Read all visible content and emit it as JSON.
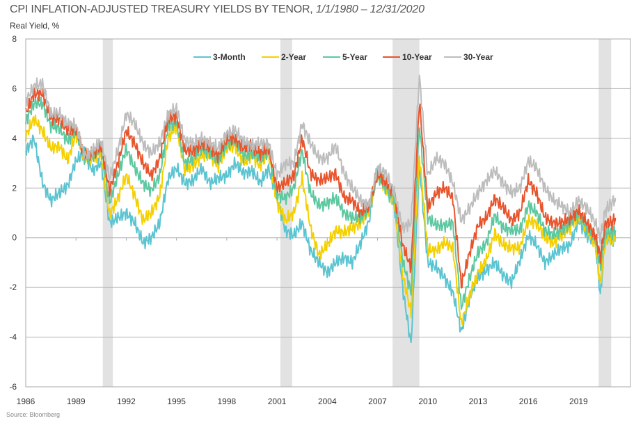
{
  "chart_data": {
    "type": "line",
    "title": "CPI INFLATION-ADJUSTED TREASURY YIELDS BY TENOR,",
    "title_dates": "1/1/1980 – 12/31/2020",
    "ylabel": "Real Yield, %",
    "xlabel": "",
    "source": "Source: Bloomberg",
    "ylim": [
      -6,
      8
    ],
    "xlim": [
      1986,
      2022.1
    ],
    "yticks": [
      -6,
      -4,
      -2,
      0,
      2,
      4,
      6,
      8
    ],
    "xticks": [
      1986,
      1989,
      1992,
      1995,
      1998,
      2001,
      2004,
      2007,
      2010,
      2013,
      2016,
      2019
    ],
    "grid": true,
    "legend_position": "top-center",
    "recessions": [
      [
        1990.6,
        1991.2
      ],
      [
        2001.2,
        2001.9
      ],
      [
        2007.9,
        2009.5
      ],
      [
        2020.2,
        2020.95
      ]
    ],
    "x": [
      1986,
      1986.5,
      1987,
      1987.5,
      1988,
      1988.5,
      1989,
      1989.5,
      1990,
      1990.5,
      1991,
      1991.5,
      1992,
      1992.5,
      1993,
      1993.5,
      1994,
      1994.5,
      1995,
      1995.5,
      1996,
      1996.5,
      1997,
      1997.5,
      1998,
      1998.5,
      1999,
      1999.5,
      2000,
      2000.5,
      2001,
      2001.5,
      2002,
      2002.5,
      2003,
      2003.5,
      2004,
      2004.5,
      2005,
      2005.5,
      2006,
      2006.5,
      2007,
      2007.5,
      2008,
      2008.5,
      2009,
      2009.5,
      2010,
      2010.5,
      2011,
      2011.5,
      2012,
      2012.5,
      2013,
      2013.5,
      2014,
      2014.5,
      2015,
      2015.5,
      2016,
      2016.5,
      2017,
      2017.5,
      2018,
      2018.5,
      2019,
      2019.5,
      2020,
      2020.3,
      2020.6,
      2021,
      2021.2
    ],
    "series": [
      {
        "name": "3-Month",
        "color": "#5bc4d1",
        "values": [
          3.5,
          4.0,
          2.2,
          1.5,
          1.8,
          2.1,
          3.1,
          3.4,
          2.7,
          3.0,
          0.6,
          0.8,
          1.0,
          0.6,
          -0.2,
          0.0,
          0.6,
          2.4,
          2.8,
          2.2,
          2.3,
          2.8,
          2.2,
          2.4,
          2.5,
          3.0,
          2.6,
          2.7,
          2.2,
          2.8,
          1.6,
          0.3,
          0.1,
          0.6,
          -0.5,
          -1.0,
          -1.4,
          -1.0,
          -0.8,
          -1.0,
          -0.2,
          0.7,
          2.9,
          2.0,
          1.3,
          -2.0,
          -4.3,
          2.9,
          -1.0,
          -1.2,
          -1.6,
          -2.2,
          -3.8,
          -2.4,
          -1.6,
          -1.3,
          -1.0,
          -1.5,
          -1.8,
          -0.9,
          0.1,
          -0.3,
          -1.0,
          -0.7,
          -0.4,
          -0.3,
          0.7,
          0.1,
          -0.2,
          -2.3,
          0.0,
          -0.1,
          0.0
        ]
      },
      {
        "name": "2-Year",
        "color": "#f5d000",
        "values": [
          4.1,
          4.8,
          4.3,
          3.6,
          3.7,
          3.1,
          4.2,
          3.2,
          3.2,
          3.4,
          0.9,
          1.6,
          2.5,
          1.7,
          0.7,
          1.0,
          1.7,
          4.0,
          4.5,
          2.7,
          2.9,
          3.3,
          3.3,
          2.9,
          3.6,
          3.7,
          3.0,
          3.3,
          2.9,
          3.4,
          1.4,
          0.7,
          1.0,
          2.4,
          0.4,
          -0.7,
          -0.3,
          0.3,
          0.2,
          0.4,
          0.6,
          1.1,
          2.6,
          1.9,
          1.5,
          -1.5,
          -3.0,
          3.3,
          -0.5,
          -0.5,
          -0.2,
          -0.4,
          -3.5,
          -2.3,
          -1.4,
          -0.9,
          0.2,
          -0.3,
          -0.4,
          -0.4,
          0.7,
          0.6,
          0.0,
          -0.2,
          0.1,
          0.4,
          0.9,
          0.3,
          -0.2,
          -1.9,
          0.0,
          0.0,
          0.0
        ]
      },
      {
        "name": "5-Year",
        "color": "#5cc8a0",
        "values": [
          4.7,
          5.4,
          5.4,
          4.5,
          4.4,
          3.9,
          4.3,
          3.2,
          3.3,
          3.6,
          1.4,
          2.5,
          3.6,
          2.8,
          2.2,
          1.9,
          2.5,
          4.5,
          4.6,
          3.0,
          3.2,
          3.6,
          3.4,
          3.1,
          3.8,
          3.9,
          3.3,
          3.4,
          3.2,
          3.5,
          1.7,
          1.6,
          2.0,
          3.5,
          1.8,
          1.3,
          1.4,
          1.6,
          1.0,
          0.8,
          0.8,
          1.2,
          2.5,
          2.0,
          1.6,
          -0.9,
          -2.2,
          4.5,
          0.8,
          0.5,
          0.5,
          0.6,
          -2.8,
          -1.6,
          -0.6,
          -0.2,
          0.9,
          0.4,
          0.3,
          0.3,
          1.3,
          1.0,
          0.3,
          0.1,
          0.3,
          0.6,
          1.0,
          0.4,
          0.0,
          -1.2,
          0.2,
          0.2,
          0.3
        ]
      },
      {
        "name": "10-Year",
        "color": "#e8542c",
        "values": [
          5.0,
          5.8,
          5.8,
          4.8,
          4.8,
          4.3,
          4.4,
          3.3,
          3.4,
          3.7,
          1.9,
          3.0,
          4.3,
          3.8,
          3.0,
          2.5,
          3.2,
          4.8,
          4.9,
          3.5,
          3.5,
          3.8,
          3.6,
          3.3,
          4.0,
          4.0,
          3.6,
          3.7,
          3.4,
          3.6,
          2.0,
          2.2,
          2.5,
          4.0,
          2.6,
          2.3,
          2.4,
          2.6,
          1.6,
          1.5,
          1.0,
          1.3,
          2.6,
          2.2,
          1.8,
          -0.3,
          -1.2,
          5.5,
          1.2,
          1.8,
          2.0,
          1.6,
          -1.9,
          -0.6,
          0.5,
          0.8,
          1.6,
          1.2,
          0.7,
          1.0,
          2.3,
          1.8,
          0.8,
          0.6,
          0.6,
          0.8,
          1.1,
          0.6,
          0.1,
          -0.8,
          0.6,
          0.6,
          0.8
        ]
      },
      {
        "name": "30-Year",
        "color": "#bdbdbd",
        "values": [
          5.5,
          6.1,
          6.2,
          5.0,
          5.0,
          4.6,
          4.5,
          3.3,
          3.5,
          3.9,
          2.4,
          3.5,
          5.0,
          4.6,
          3.8,
          3.4,
          3.8,
          5.0,
          5.2,
          3.9,
          3.8,
          4.0,
          3.8,
          3.6,
          4.2,
          4.3,
          3.9,
          3.7,
          3.8,
          3.8,
          2.5,
          3.0,
          3.0,
          4.6,
          3.8,
          3.2,
          3.2,
          3.7,
          2.6,
          2.0,
          1.5,
          1.3,
          2.8,
          2.6,
          1.8,
          0.4,
          0.6,
          6.5,
          2.5,
          3.2,
          3.0,
          2.2,
          0.7,
          1.2,
          1.8,
          2.3,
          2.7,
          2.2,
          1.8,
          2.0,
          3.1,
          2.8,
          2.0,
          1.5,
          1.3,
          1.0,
          1.5,
          1.2,
          0.6,
          0.0,
          1.1,
          1.4,
          1.6
        ]
      }
    ]
  }
}
